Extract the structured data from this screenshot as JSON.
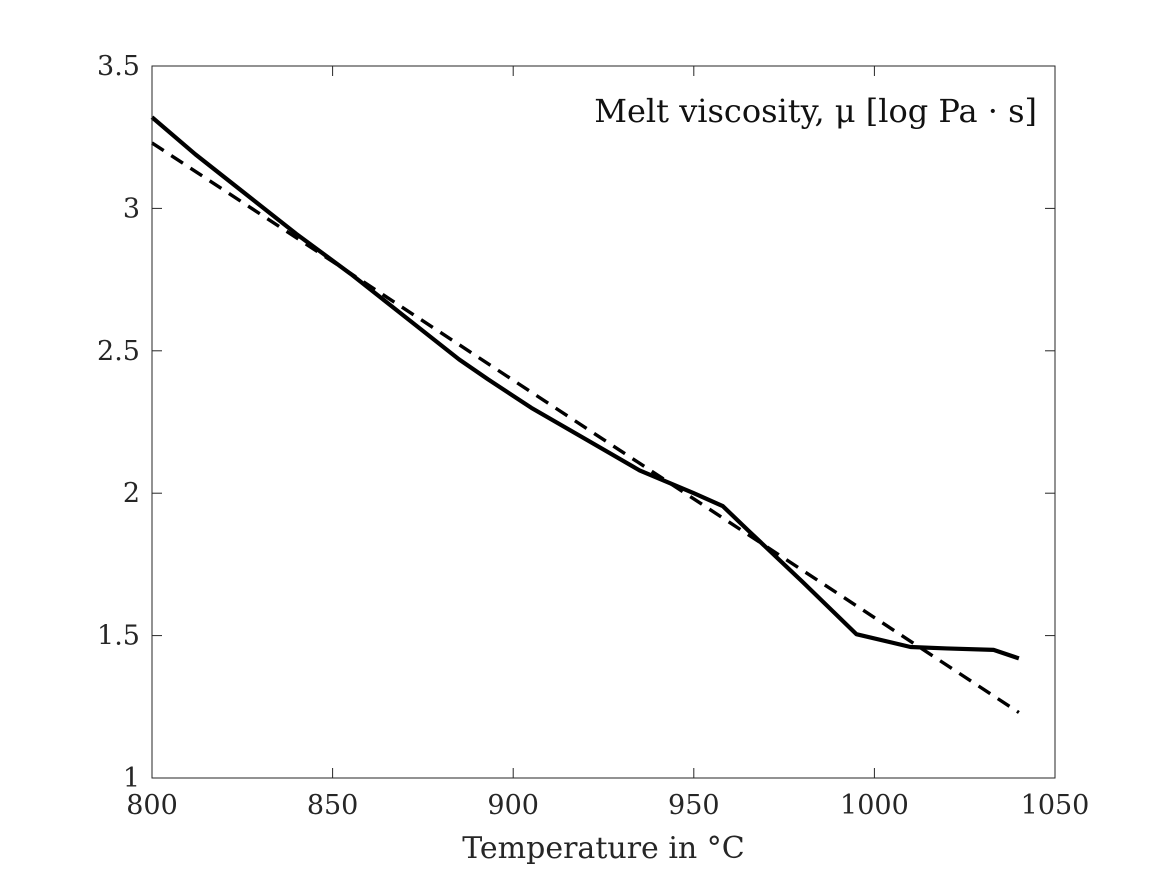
{
  "chart_data": {
    "type": "line",
    "title": "",
    "xlabel": "Temperature in °C",
    "ylabel": "",
    "annotation": "Melt viscosity, μ [log Pa · s]",
    "xlim": [
      800,
      1050
    ],
    "ylim": [
      1,
      3.5
    ],
    "xticks": [
      800,
      850,
      900,
      950,
      1000,
      1050
    ],
    "xtick_labels": [
      "800",
      "850",
      "900",
      "950",
      "1000",
      "1050"
    ],
    "yticks": [
      1,
      1.5,
      2,
      2.5,
      3,
      3.5
    ],
    "ytick_labels": [
      "1",
      "1.5",
      "2",
      "2.5",
      "3",
      "3.5"
    ],
    "grid": false,
    "legend": "none",
    "series": [
      {
        "style": "solid",
        "color": "#000000",
        "points": [
          [
            800,
            3.32
          ],
          [
            812,
            3.19
          ],
          [
            825,
            3.06
          ],
          [
            840,
            2.91
          ],
          [
            855,
            2.77
          ],
          [
            870,
            2.62
          ],
          [
            885,
            2.47
          ],
          [
            893,
            2.4
          ],
          [
            905,
            2.3
          ],
          [
            920,
            2.19
          ],
          [
            935,
            2.08
          ],
          [
            950,
            2.0
          ],
          [
            958,
            1.955
          ],
          [
            965,
            1.87
          ],
          [
            980,
            1.69
          ],
          [
            995,
            1.505
          ],
          [
            1010,
            1.46
          ],
          [
            1020,
            1.455
          ],
          [
            1033,
            1.45
          ],
          [
            1040,
            1.42
          ]
        ]
      },
      {
        "style": "dashed",
        "color": "#000000",
        "points": [
          [
            800,
            3.23
          ],
          [
            1040,
            1.23
          ]
        ]
      }
    ]
  }
}
